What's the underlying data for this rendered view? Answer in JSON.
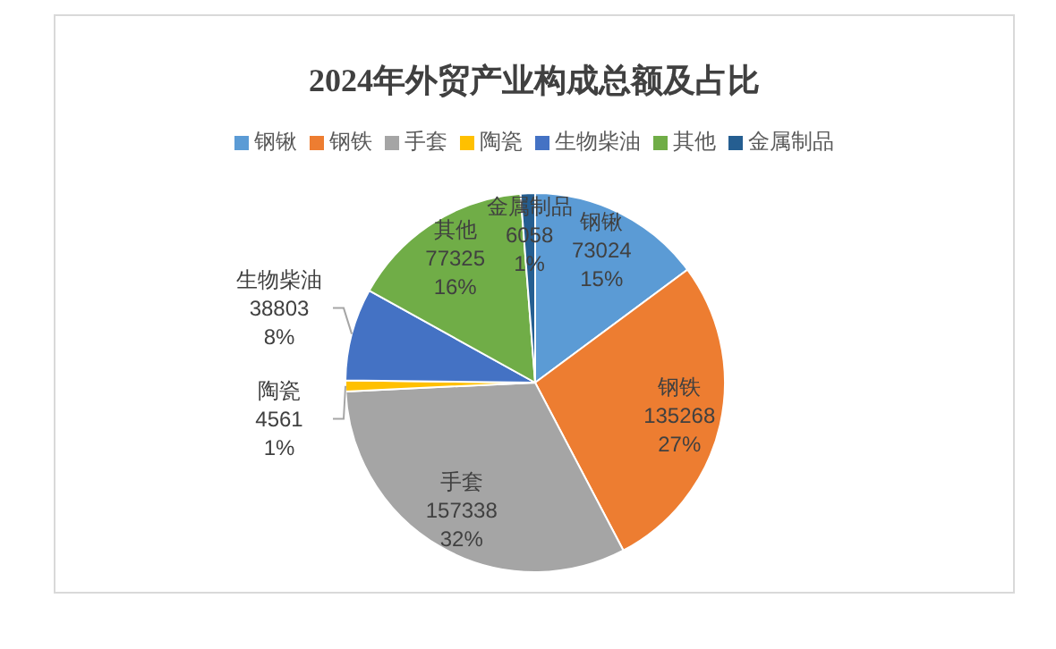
{
  "chart_data": {
    "type": "pie",
    "title": "2024年外贸产业构成总额及占比",
    "categories": [
      "钢锹",
      "钢铁",
      "手套",
      "陶瓷",
      "生物柴油",
      "其他",
      "金属制品"
    ],
    "values": [
      73024,
      135268,
      157338,
      4561,
      38803,
      77325,
      6058
    ],
    "colors": [
      "#5b9bd5",
      "#ed7d31",
      "#a5a5a5",
      "#ffc000",
      "#4472c4",
      "#70ad47",
      "#255e91"
    ],
    "value_labels": [
      "73024\n15%",
      "135268\n27%",
      "157338\n32%",
      "4561\n1%",
      "38803\n8%",
      "77325\n16%",
      "6058\n1%"
    ],
    "legend": "top"
  }
}
